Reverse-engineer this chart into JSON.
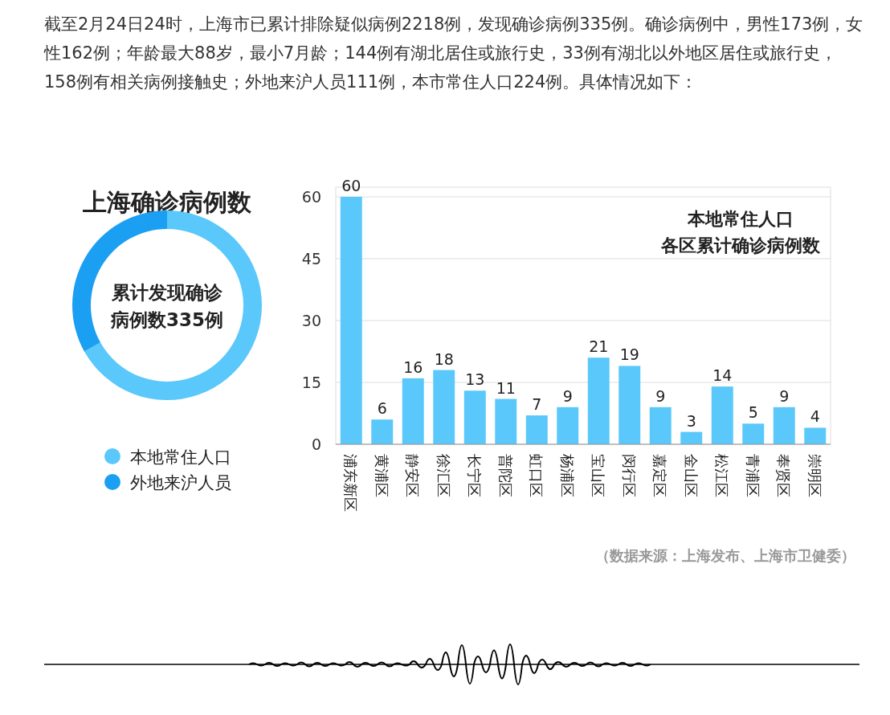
{
  "chart_data": [
    {
      "type": "donut",
      "title": "上海确诊病例数",
      "categories": [
        "本地常住人口",
        "外地来沪人员"
      ],
      "values": [
        66.9,
        33.1
      ],
      "colors": [
        "#5ac8fa",
        "#1a9ff2"
      ],
      "legend": "bottom",
      "annotations": [
        "截至2月24日24时，上海市已累计排除疑似病例2218例，发现确诊病例335例。确诊病例中，男性173例，女性162例；年龄最大88岁，最小7月龄；144例有湖北居住或旅行史，33例有湖北以外地区居住或旅行史，158例有相关病例接触史；外地来沪人员111例，本市常住人口224例。具体情况如下：",
        "累计发现确诊",
        "病例数335例"
      ]
    },
    {
      "type": "bar",
      "title": "本地常住人口",
      "subtitle": "各区累计确诊病例数",
      "categories": [
        "浦东新区",
        "黄浦区",
        "静安区",
        "徐汇区",
        "长宁区",
        "普陀区",
        "虹口区",
        "杨浦区",
        "宝山区",
        "闵行区",
        "嘉定区",
        "金山区",
        "松江区",
        "青浦区",
        "奉贤区",
        "崇明区"
      ],
      "values": [
        60,
        6,
        16,
        18,
        13,
        11,
        7,
        9,
        21,
        19,
        9,
        3,
        14,
        5,
        9,
        4
      ],
      "color": "#5ac8fa",
      "ylim": [
        0,
        60
      ],
      "yticks": [
        0,
        15,
        30,
        45,
        60
      ],
      "grid": "y",
      "data_labels": true,
      "annotations": [
        "（数据来源：上海发布、上海市卫健委）"
      ]
    }
  ]
}
